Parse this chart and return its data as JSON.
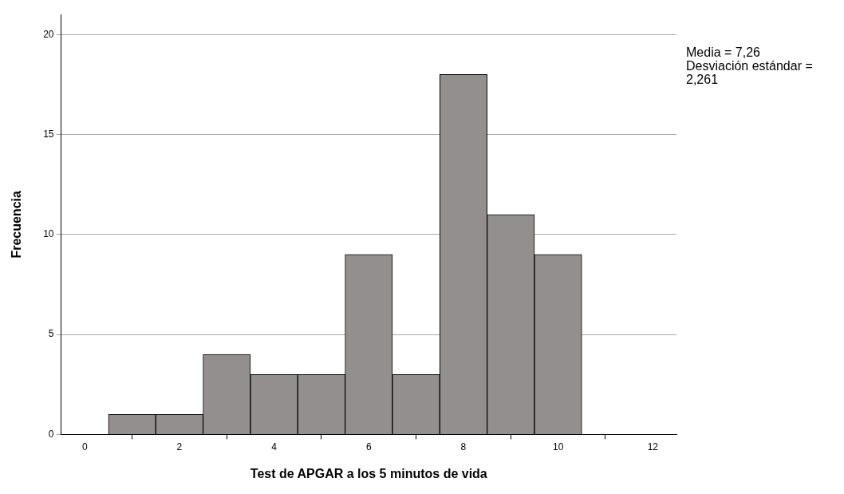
{
  "chart_data": {
    "type": "histogram",
    "xlabel": "Test de APGAR a los 5 minutos de vida",
    "ylabel": "Frecuencia",
    "bins": [
      0.5,
      1.5,
      2.5,
      3.5,
      4.5,
      5.5,
      6.5,
      7.5,
      8.5,
      9.5,
      10.5
    ],
    "values": [
      1,
      1,
      4,
      3,
      3,
      9,
      3,
      18,
      11,
      9
    ],
    "color": "#948f8f",
    "xlim": [
      -0.5,
      12.5
    ],
    "xticks": [
      0,
      2,
      4,
      6,
      8,
      10,
      12
    ],
    "ylim": [
      0,
      21
    ],
    "yticks": [
      0,
      5,
      10,
      15,
      20
    ],
    "grid": "y",
    "legend": false,
    "annotations": [
      "Media = 7,26",
      "Desviación estándar = 2,261"
    ]
  }
}
